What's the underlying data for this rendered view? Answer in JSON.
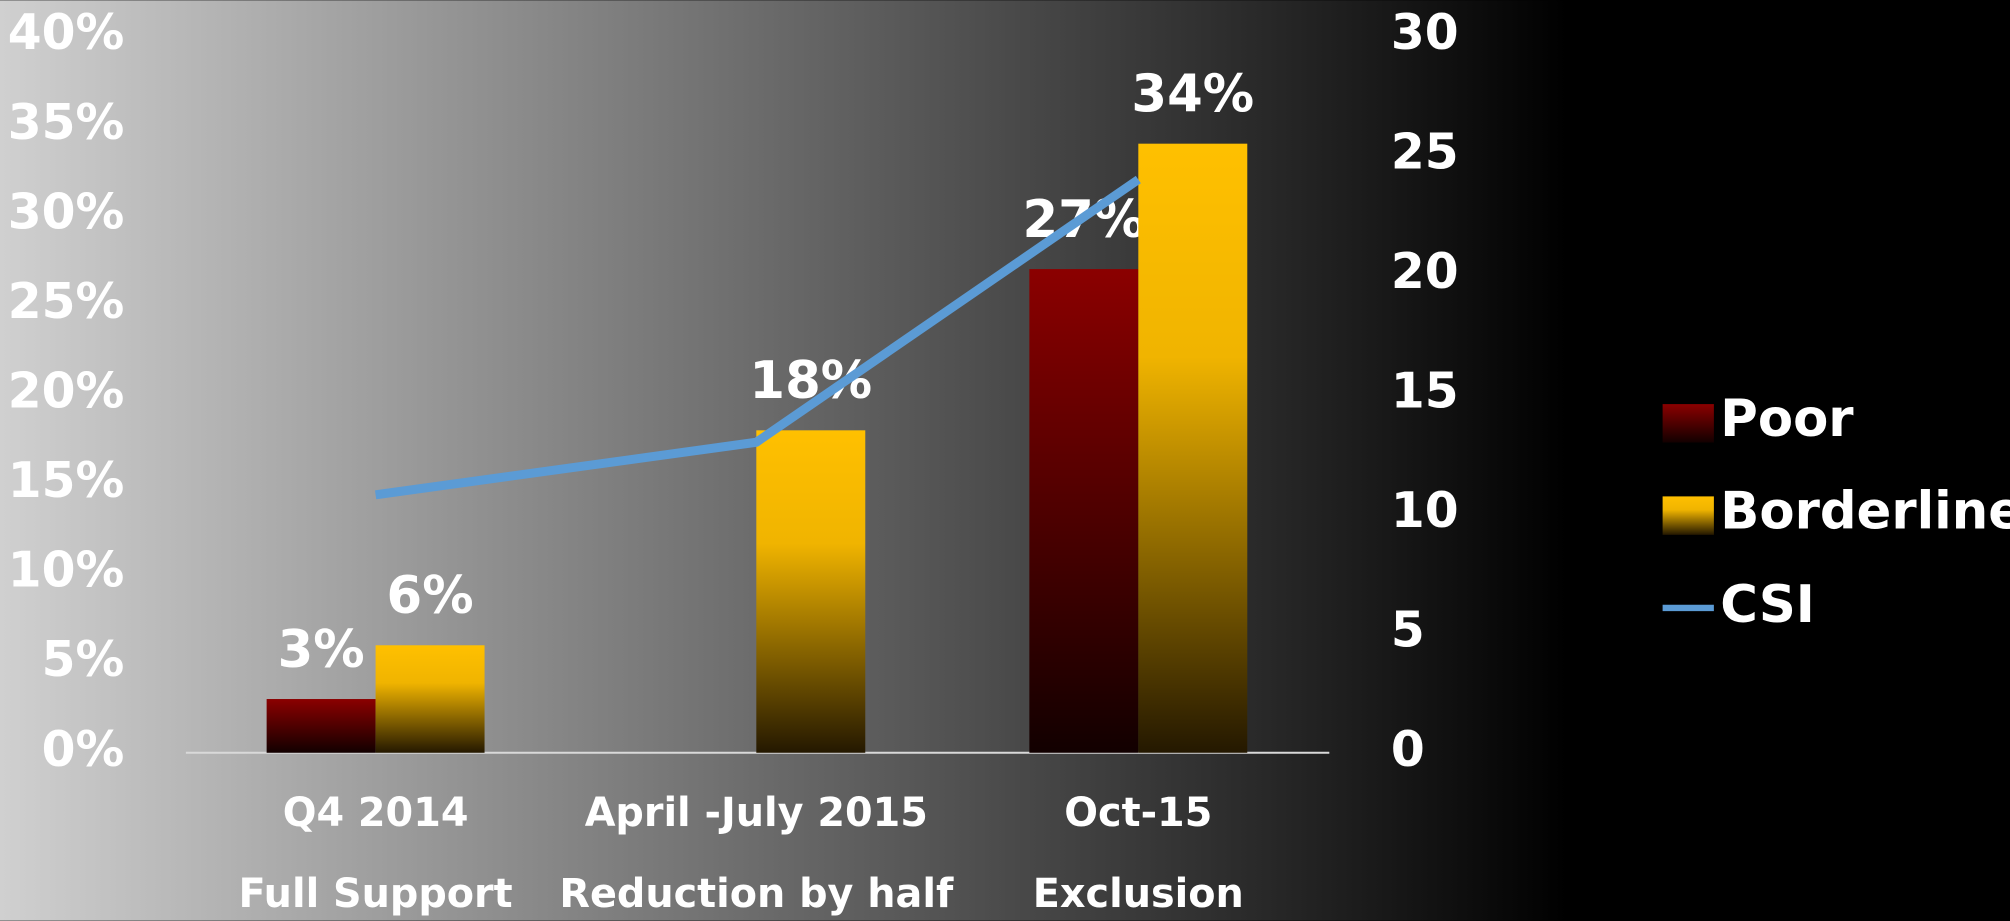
{
  "chart_data": {
    "type": "bar",
    "categories": [
      "Q4 2014",
      "April -July 2015",
      "Oct-15"
    ],
    "category_notes": [
      "Full Support",
      "Reduction by half",
      "Exclusion"
    ],
    "series": [
      {
        "name": "Poor",
        "type": "bar",
        "color": "#8b0000",
        "values": [
          3,
          null,
          27
        ],
        "value_labels": [
          "3%",
          null,
          "27%"
        ]
      },
      {
        "name": "Borderline",
        "type": "bar",
        "color": "#ffc000",
        "values": [
          6,
          18,
          34
        ],
        "value_labels": [
          "6%",
          "18%",
          "34%"
        ]
      },
      {
        "name": "CSI",
        "type": "line",
        "axis": "y2",
        "color": "#5b9bd5",
        "values": [
          10.8,
          13.0,
          24.0
        ]
      }
    ],
    "ylim": [
      0,
      40
    ],
    "yticks": [
      {
        "value": 0,
        "label": "0%"
      },
      {
        "value": 5,
        "label": "5%"
      },
      {
        "value": 10,
        "label": "10%"
      },
      {
        "value": 15,
        "label": "15%"
      },
      {
        "value": 20,
        "label": "20%"
      },
      {
        "value": 25,
        "label": "25%"
      },
      {
        "value": 30,
        "label": "30%"
      },
      {
        "value": 35,
        "label": "35%"
      },
      {
        "value": 40,
        "label": "40%"
      }
    ],
    "y2lim": [
      0,
      30
    ],
    "y2ticks": [
      0,
      5,
      10,
      15,
      20,
      25,
      30
    ],
    "legend": "right"
  }
}
